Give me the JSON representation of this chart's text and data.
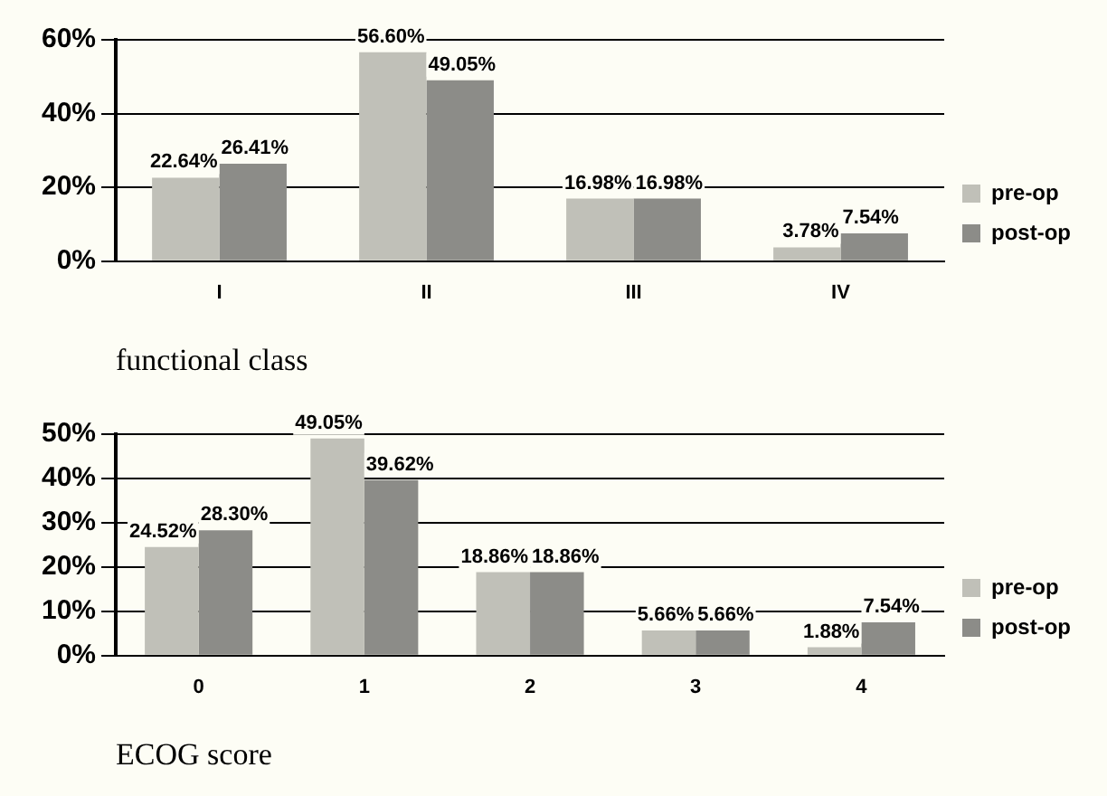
{
  "chart_data": [
    {
      "type": "bar",
      "xlabel": "functional class",
      "categories": [
        "I",
        "II",
        "III",
        "IV"
      ],
      "series": [
        {
          "name": "pre-op",
          "color": "#c0c0b8",
          "values": [
            22.64,
            56.6,
            16.98,
            3.78
          ],
          "value_labels": [
            "22.64%",
            "56.60%",
            "16.98%",
            "3.78%"
          ]
        },
        {
          "name": "post-op",
          "color": "#8c8c88",
          "values": [
            26.41,
            49.05,
            16.98,
            7.54
          ],
          "value_labels": [
            "26.41%",
            "49.05%",
            "16.98%",
            "7.54%"
          ]
        }
      ],
      "ylim": [
        0,
        60
      ],
      "yticks": [
        {
          "value": 0,
          "label": "0%"
        },
        {
          "value": 20,
          "label": "20%"
        },
        {
          "value": 40,
          "label": "40%"
        },
        {
          "value": 60,
          "label": "60%"
        }
      ],
      "grid": "y",
      "legend": "right"
    },
    {
      "type": "bar",
      "xlabel": "ECOG score",
      "categories": [
        "0",
        "1",
        "2",
        "3",
        "4"
      ],
      "series": [
        {
          "name": "pre-op",
          "color": "#c0c0b8",
          "values": [
            24.52,
            49.05,
            18.86,
            5.66,
            1.88
          ],
          "value_labels": [
            "24.52%",
            "49.05%",
            "18.86%",
            "5.66%",
            "1.88%"
          ]
        },
        {
          "name": "post-op",
          "color": "#8c8c88",
          "values": [
            28.3,
            39.62,
            18.86,
            5.66,
            7.54
          ],
          "value_labels": [
            "28.30%",
            "39.62%",
            "18.86%",
            "5.66%",
            "7.54%"
          ]
        }
      ],
      "ylim": [
        0,
        50
      ],
      "yticks": [
        {
          "value": 0,
          "label": "0%"
        },
        {
          "value": 10,
          "label": "10%"
        },
        {
          "value": 20,
          "label": "20%"
        },
        {
          "value": 30,
          "label": "30%"
        },
        {
          "value": 40,
          "label": "40%"
        },
        {
          "value": 50,
          "label": "50%"
        }
      ],
      "grid": "y",
      "legend": "right"
    }
  ]
}
